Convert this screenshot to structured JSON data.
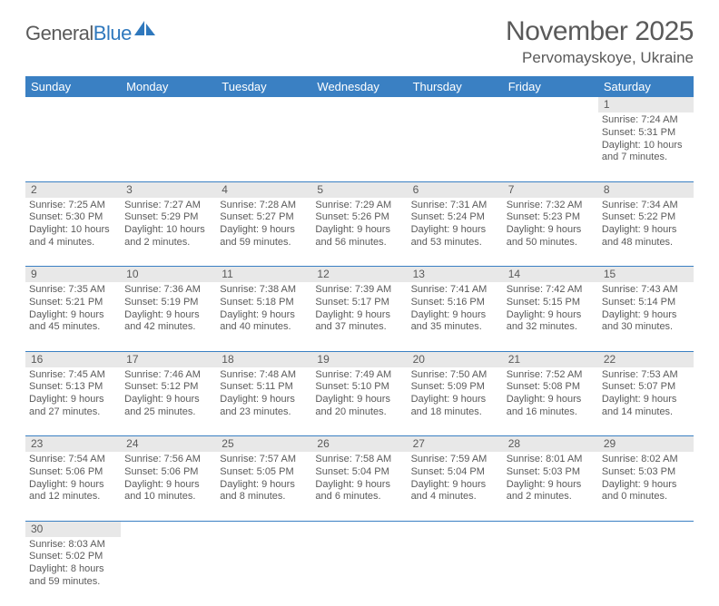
{
  "logo": {
    "textGeneral": "General",
    "textBlue": "Blue"
  },
  "header": {
    "month": "November 2025",
    "location": "Pervomayskoye, Ukraine"
  },
  "colors": {
    "headerBar": "#3a80c3",
    "dayNumBg": "#e8e8e8",
    "text": "#5a5a5a",
    "ruleBlue": "#3a80c3"
  },
  "typography": {
    "titleFontSize": 30,
    "locationFontSize": 17,
    "dayHeadFontSize": 13,
    "cellFontSize": 11
  },
  "dayNames": [
    "Sunday",
    "Monday",
    "Tuesday",
    "Wednesday",
    "Thursday",
    "Friday",
    "Saturday"
  ],
  "weeks": [
    [
      null,
      null,
      null,
      null,
      null,
      null,
      {
        "n": "1",
        "sr": "Sunrise: 7:24 AM",
        "ss": "Sunset: 5:31 PM",
        "dl": "Daylight: 10 hours and 7 minutes."
      }
    ],
    [
      {
        "n": "2",
        "sr": "Sunrise: 7:25 AM",
        "ss": "Sunset: 5:30 PM",
        "dl": "Daylight: 10 hours and 4 minutes."
      },
      {
        "n": "3",
        "sr": "Sunrise: 7:27 AM",
        "ss": "Sunset: 5:29 PM",
        "dl": "Daylight: 10 hours and 2 minutes."
      },
      {
        "n": "4",
        "sr": "Sunrise: 7:28 AM",
        "ss": "Sunset: 5:27 PM",
        "dl": "Daylight: 9 hours and 59 minutes."
      },
      {
        "n": "5",
        "sr": "Sunrise: 7:29 AM",
        "ss": "Sunset: 5:26 PM",
        "dl": "Daylight: 9 hours and 56 minutes."
      },
      {
        "n": "6",
        "sr": "Sunrise: 7:31 AM",
        "ss": "Sunset: 5:24 PM",
        "dl": "Daylight: 9 hours and 53 minutes."
      },
      {
        "n": "7",
        "sr": "Sunrise: 7:32 AM",
        "ss": "Sunset: 5:23 PM",
        "dl": "Daylight: 9 hours and 50 minutes."
      },
      {
        "n": "8",
        "sr": "Sunrise: 7:34 AM",
        "ss": "Sunset: 5:22 PM",
        "dl": "Daylight: 9 hours and 48 minutes."
      }
    ],
    [
      {
        "n": "9",
        "sr": "Sunrise: 7:35 AM",
        "ss": "Sunset: 5:21 PM",
        "dl": "Daylight: 9 hours and 45 minutes."
      },
      {
        "n": "10",
        "sr": "Sunrise: 7:36 AM",
        "ss": "Sunset: 5:19 PM",
        "dl": "Daylight: 9 hours and 42 minutes."
      },
      {
        "n": "11",
        "sr": "Sunrise: 7:38 AM",
        "ss": "Sunset: 5:18 PM",
        "dl": "Daylight: 9 hours and 40 minutes."
      },
      {
        "n": "12",
        "sr": "Sunrise: 7:39 AM",
        "ss": "Sunset: 5:17 PM",
        "dl": "Daylight: 9 hours and 37 minutes."
      },
      {
        "n": "13",
        "sr": "Sunrise: 7:41 AM",
        "ss": "Sunset: 5:16 PM",
        "dl": "Daylight: 9 hours and 35 minutes."
      },
      {
        "n": "14",
        "sr": "Sunrise: 7:42 AM",
        "ss": "Sunset: 5:15 PM",
        "dl": "Daylight: 9 hours and 32 minutes."
      },
      {
        "n": "15",
        "sr": "Sunrise: 7:43 AM",
        "ss": "Sunset: 5:14 PM",
        "dl": "Daylight: 9 hours and 30 minutes."
      }
    ],
    [
      {
        "n": "16",
        "sr": "Sunrise: 7:45 AM",
        "ss": "Sunset: 5:13 PM",
        "dl": "Daylight: 9 hours and 27 minutes."
      },
      {
        "n": "17",
        "sr": "Sunrise: 7:46 AM",
        "ss": "Sunset: 5:12 PM",
        "dl": "Daylight: 9 hours and 25 minutes."
      },
      {
        "n": "18",
        "sr": "Sunrise: 7:48 AM",
        "ss": "Sunset: 5:11 PM",
        "dl": "Daylight: 9 hours and 23 minutes."
      },
      {
        "n": "19",
        "sr": "Sunrise: 7:49 AM",
        "ss": "Sunset: 5:10 PM",
        "dl": "Daylight: 9 hours and 20 minutes."
      },
      {
        "n": "20",
        "sr": "Sunrise: 7:50 AM",
        "ss": "Sunset: 5:09 PM",
        "dl": "Daylight: 9 hours and 18 minutes."
      },
      {
        "n": "21",
        "sr": "Sunrise: 7:52 AM",
        "ss": "Sunset: 5:08 PM",
        "dl": "Daylight: 9 hours and 16 minutes."
      },
      {
        "n": "22",
        "sr": "Sunrise: 7:53 AM",
        "ss": "Sunset: 5:07 PM",
        "dl": "Daylight: 9 hours and 14 minutes."
      }
    ],
    [
      {
        "n": "23",
        "sr": "Sunrise: 7:54 AM",
        "ss": "Sunset: 5:06 PM",
        "dl": "Daylight: 9 hours and 12 minutes."
      },
      {
        "n": "24",
        "sr": "Sunrise: 7:56 AM",
        "ss": "Sunset: 5:06 PM",
        "dl": "Daylight: 9 hours and 10 minutes."
      },
      {
        "n": "25",
        "sr": "Sunrise: 7:57 AM",
        "ss": "Sunset: 5:05 PM",
        "dl": "Daylight: 9 hours and 8 minutes."
      },
      {
        "n": "26",
        "sr": "Sunrise: 7:58 AM",
        "ss": "Sunset: 5:04 PM",
        "dl": "Daylight: 9 hours and 6 minutes."
      },
      {
        "n": "27",
        "sr": "Sunrise: 7:59 AM",
        "ss": "Sunset: 5:04 PM",
        "dl": "Daylight: 9 hours and 4 minutes."
      },
      {
        "n": "28",
        "sr": "Sunrise: 8:01 AM",
        "ss": "Sunset: 5:03 PM",
        "dl": "Daylight: 9 hours and 2 minutes."
      },
      {
        "n": "29",
        "sr": "Sunrise: 8:02 AM",
        "ss": "Sunset: 5:03 PM",
        "dl": "Daylight: 9 hours and 0 minutes."
      }
    ],
    [
      {
        "n": "30",
        "sr": "Sunrise: 8:03 AM",
        "ss": "Sunset: 5:02 PM",
        "dl": "Daylight: 8 hours and 59 minutes."
      },
      null,
      null,
      null,
      null,
      null,
      null
    ]
  ]
}
